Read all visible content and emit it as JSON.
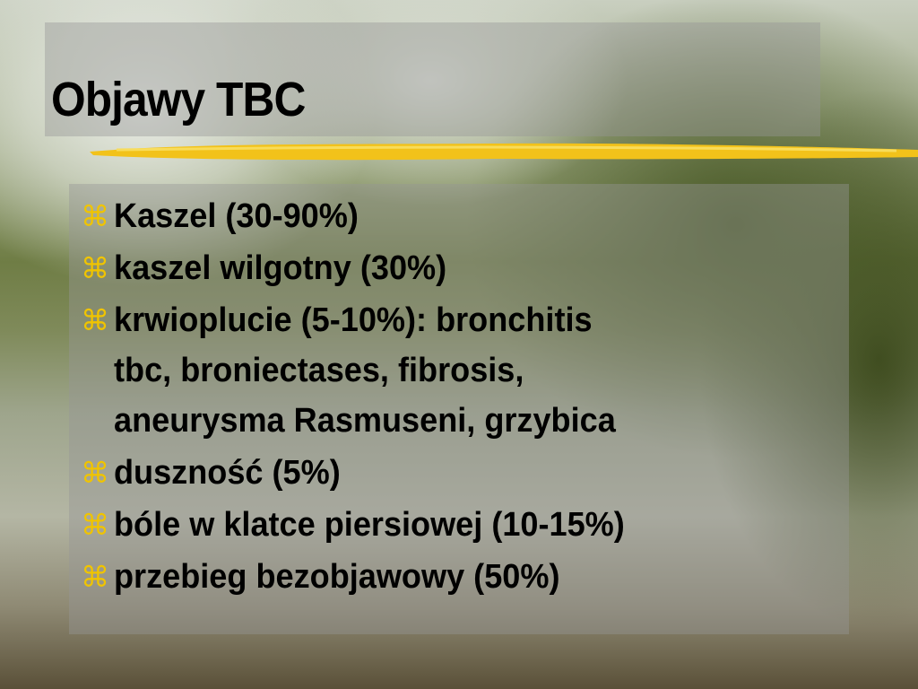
{
  "slide": {
    "title": "Objawy TBC",
    "bullet_icon": "command-symbol-icon",
    "bullet_glyph": "⌘",
    "accent_color": "#f0c400",
    "items": [
      {
        "lines": [
          "Kaszel (30-90%)"
        ]
      },
      {
        "lines": [
          "kaszel wilgotny (30%)"
        ]
      },
      {
        "lines": [
          "krwioplucie (5-10%): bronchitis",
          "tbc, broniectases, fibrosis,",
          "aneurysma Rasmuseni, grzybica"
        ]
      },
      {
        "lines": [
          "duszność (5%)"
        ]
      },
      {
        "lines": [
          "bóle w klatce piersiowej (10-15%)"
        ]
      },
      {
        "lines": [
          "przebieg bezobjawowy (50%)"
        ]
      }
    ]
  }
}
